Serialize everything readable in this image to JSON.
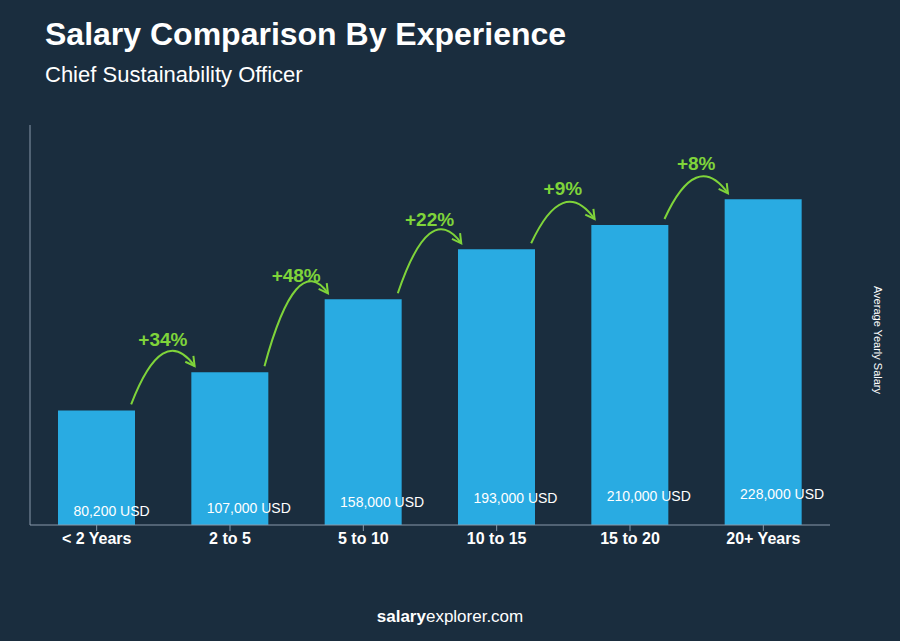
{
  "chart_data": {
    "type": "bar",
    "title": "Salary Comparison By Experience",
    "subtitle": "Chief Sustainability Officer",
    "ylabel": "Average Yearly Salary",
    "footer": [
      "salary",
      "explorer.com"
    ],
    "categories": [
      "< 2 Years",
      "2 to 5",
      "5 to 10",
      "10 to 15",
      "15 to 20",
      "20+ Years"
    ],
    "values": [
      80200,
      107000,
      158000,
      193000,
      210000,
      228000
    ],
    "value_labels": [
      "80,200 USD",
      "107,000 USD",
      "158,000 USD",
      "193,000 USD",
      "210,000 USD",
      "228,000 USD"
    ],
    "data_labels": true,
    "annotations": [
      "+34%",
      "+48%",
      "+22%",
      "+9%",
      "+8%"
    ],
    "color": "#29ABE2",
    "ylim": [
      0,
      280000
    ],
    "tick_labels": "x",
    "grid": false
  }
}
